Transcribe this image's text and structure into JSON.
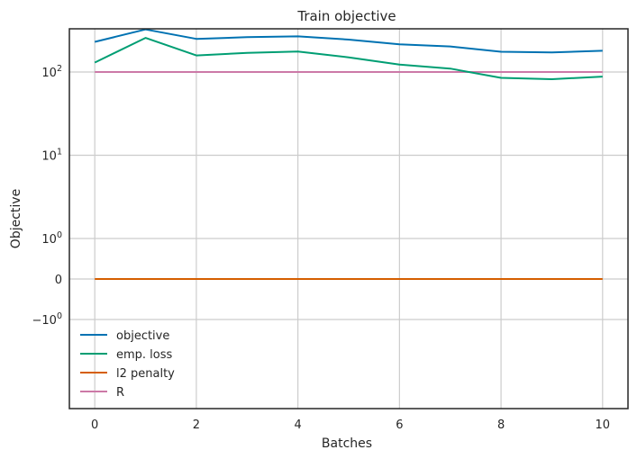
{
  "chart_data": {
    "type": "line",
    "title": "Train objective",
    "xlabel": "Batches",
    "ylabel": "Objective",
    "xlim": [
      -0.5,
      10.5
    ],
    "yscale": "symlog",
    "grid": true,
    "legend_position": "lower-left",
    "x": [
      0,
      1,
      2,
      3,
      4,
      5,
      6,
      7,
      8,
      9,
      10
    ],
    "x_ticks": [
      0,
      2,
      4,
      6,
      8,
      10
    ],
    "x_tick_labels": [
      "0",
      "2",
      "4",
      "6",
      "8",
      "10"
    ],
    "y_ticks": [
      {
        "value": 100,
        "base": "10",
        "exp": "2",
        "minus": ""
      },
      {
        "value": 10,
        "base": "10",
        "exp": "1",
        "minus": ""
      },
      {
        "value": 1,
        "base": "10",
        "exp": "0",
        "minus": ""
      },
      {
        "value": 0,
        "base": "0",
        "exp": "",
        "minus": ""
      },
      {
        "value": -1,
        "base": "10",
        "exp": "0",
        "minus": "−"
      }
    ],
    "series": [
      {
        "name": "objective",
        "color": "#0072b2",
        "values": [
          230,
          325,
          250,
          262,
          268,
          245,
          215,
          203,
          175,
          172,
          180
        ]
      },
      {
        "name": "emp. loss",
        "color": "#009e73",
        "values": [
          130,
          257,
          158,
          170,
          176,
          150,
          123,
          110,
          85,
          82,
          88
        ]
      },
      {
        "name": "l2 penalty",
        "color": "#d55e00",
        "values": [
          0,
          0,
          0,
          0,
          0,
          0,
          0,
          0,
          0,
          0,
          0
        ]
      },
      {
        "name": "R",
        "color": "#cc79a7",
        "values": [
          100,
          100,
          100,
          100,
          100,
          100,
          100,
          100,
          100,
          100,
          100
        ]
      }
    ]
  }
}
